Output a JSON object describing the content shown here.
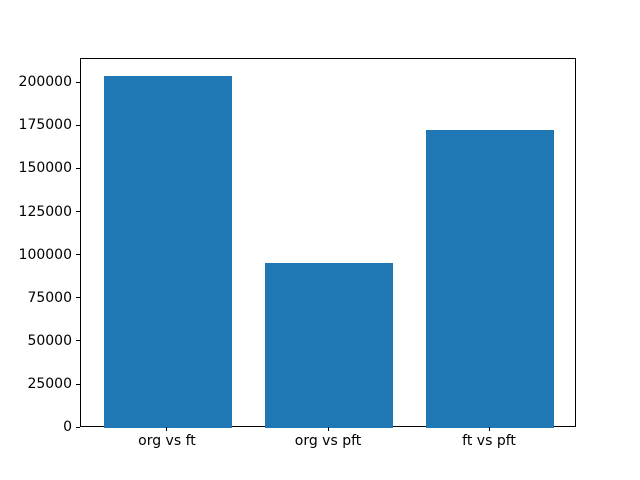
{
  "chart_data": {
    "type": "bar",
    "categories": [
      "org vs ft",
      "org vs pft",
      "ft vs pft"
    ],
    "values": [
      204000,
      95500,
      173000
    ],
    "title": "",
    "xlabel": "",
    "ylabel": "",
    "ylim": [
      0,
      214200
    ],
    "yticks": [
      0,
      25000,
      50000,
      75000,
      100000,
      125000,
      150000,
      175000,
      200000
    ],
    "ytick_labels": [
      "0",
      "25000",
      "50000",
      "75000",
      "100000",
      "125000",
      "150000",
      "175000",
      "200000"
    ],
    "bar_color": "#1f77b4",
    "spine_color": "#000000",
    "text_color": "#000000",
    "background_color": "#ffffff",
    "grid": "off",
    "legend": "none"
  }
}
